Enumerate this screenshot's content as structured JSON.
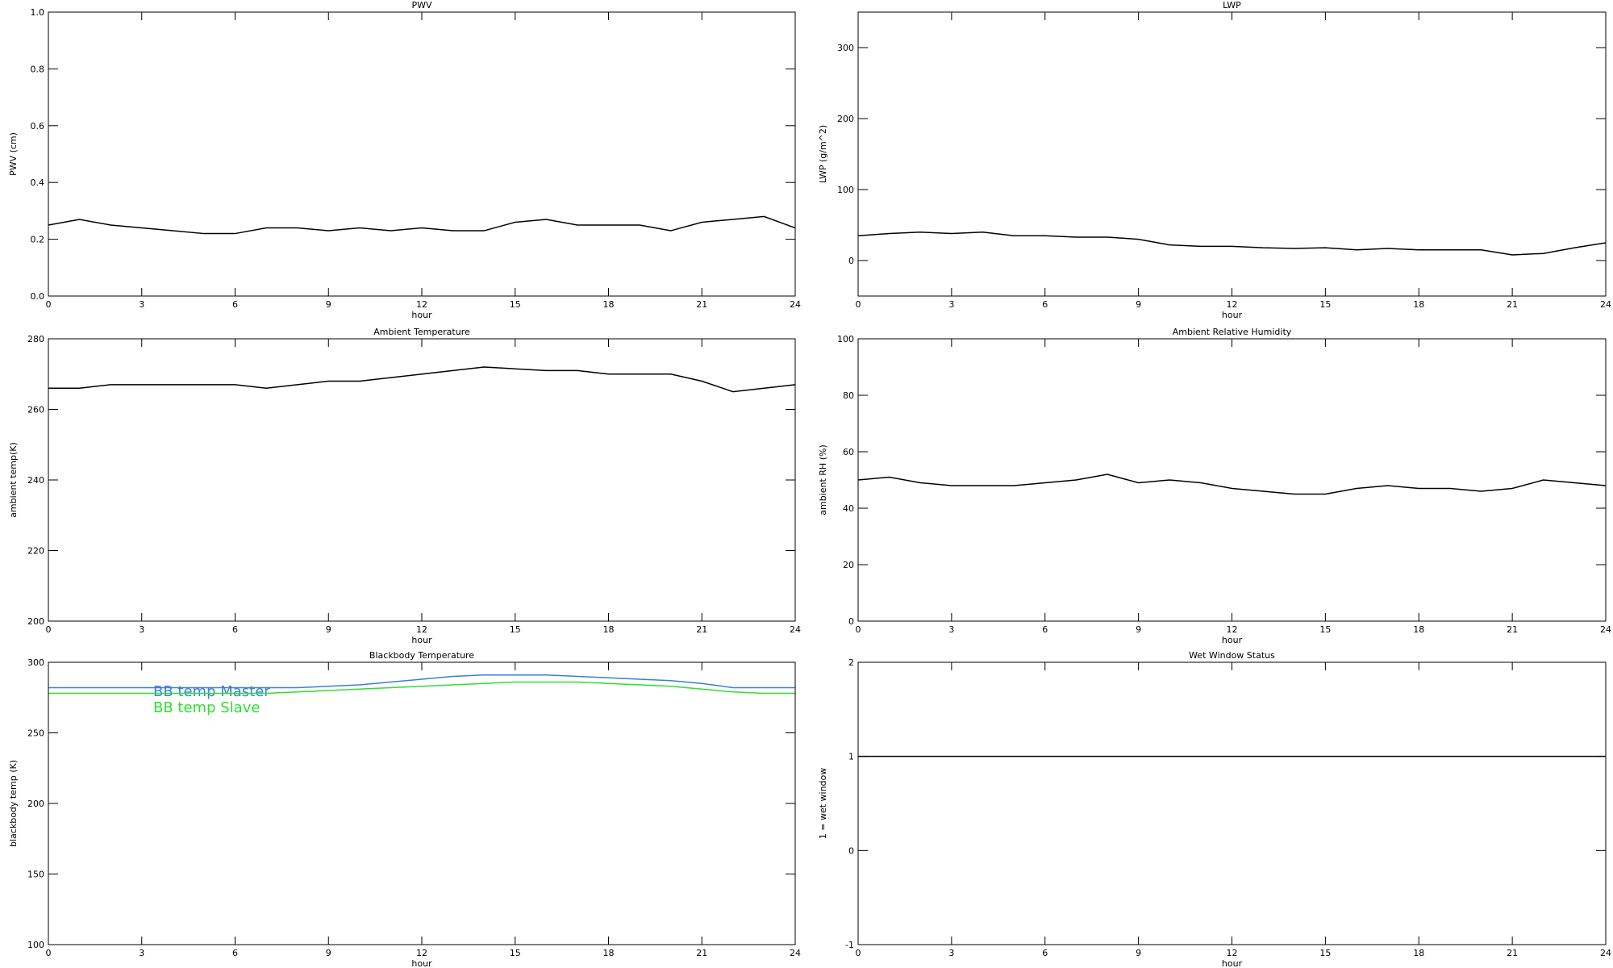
{
  "chart_data": [
    {
      "type": "line",
      "title": "PWV",
      "ylabel": "PWV (cm)",
      "xlabel": "hour",
      "x": [
        0,
        1,
        2,
        3,
        4,
        5,
        6,
        7,
        8,
        9,
        10,
        11,
        12,
        13,
        14,
        15,
        16,
        17,
        18,
        19,
        20,
        21,
        22,
        23,
        24
      ],
      "xlim": [
        0,
        24
      ],
      "xticks": [
        0,
        3,
        6,
        9,
        12,
        15,
        18,
        21,
        24
      ],
      "ylim": [
        0,
        1
      ],
      "yticks": [
        {
          "value": 0,
          "label": "0.0"
        },
        0.2,
        0.4,
        0.6,
        0.8,
        {
          "value": 1,
          "label": "1.0"
        }
      ],
      "series": [
        {
          "color": "#000000",
          "values": [
            0.25,
            0.27,
            0.25,
            0.24,
            0.23,
            0.22,
            0.22,
            0.24,
            0.24,
            0.23,
            0.24,
            0.23,
            0.24,
            0.23,
            0.23,
            0.26,
            0.27,
            0.25,
            0.25,
            0.25,
            0.23,
            0.26,
            0.27,
            0.28,
            0.24
          ]
        }
      ]
    },
    {
      "type": "line",
      "title": "LWP",
      "ylabel": "LWP (g/m^2)",
      "xlabel": "hour",
      "x": [
        0,
        1,
        2,
        3,
        4,
        5,
        6,
        7,
        8,
        9,
        10,
        11,
        12,
        13,
        14,
        15,
        16,
        17,
        18,
        19,
        20,
        21,
        22,
        23,
        24
      ],
      "xlim": [
        0,
        24
      ],
      "xticks": [
        0,
        3,
        6,
        9,
        12,
        15,
        18,
        21,
        24
      ],
      "ylim": [
        -50,
        350
      ],
      "yticks": [
        0,
        100,
        200,
        300
      ],
      "series": [
        {
          "color": "#000000",
          "values": [
            35,
            38,
            40,
            38,
            40,
            35,
            35,
            33,
            33,
            30,
            22,
            20,
            20,
            18,
            17,
            18,
            15,
            17,
            15,
            15,
            15,
            8,
            10,
            18,
            25
          ]
        }
      ]
    },
    {
      "type": "line",
      "title": "Ambient Temperature",
      "ylabel": "ambient temp(K)",
      "xlabel": "hour",
      "x": [
        0,
        1,
        2,
        3,
        4,
        5,
        6,
        7,
        8,
        9,
        10,
        11,
        12,
        13,
        14,
        15,
        16,
        17,
        18,
        19,
        20,
        21,
        22,
        23,
        24
      ],
      "xlim": [
        0,
        24
      ],
      "xticks": [
        0,
        3,
        6,
        9,
        12,
        15,
        18,
        21,
        24
      ],
      "ylim": [
        200,
        280
      ],
      "yticks": [
        200,
        220,
        240,
        260,
        280
      ],
      "series": [
        {
          "color": "#000000",
          "values": [
            266,
            266,
            267,
            267,
            267,
            267,
            267,
            266,
            267,
            268,
            268,
            269,
            270,
            271,
            272,
            271.5,
            271,
            271,
            270,
            270,
            270,
            268,
            265,
            266,
            267
          ]
        }
      ]
    },
    {
      "type": "line",
      "title": "Ambient Relative Humidity",
      "ylabel": "ambient RH (%)",
      "xlabel": "hour",
      "x": [
        0,
        1,
        2,
        3,
        4,
        5,
        6,
        7,
        8,
        9,
        10,
        11,
        12,
        13,
        14,
        15,
        16,
        17,
        18,
        19,
        20,
        21,
        22,
        23,
        24
      ],
      "xlim": [
        0,
        24
      ],
      "xticks": [
        0,
        3,
        6,
        9,
        12,
        15,
        18,
        21,
        24
      ],
      "ylim": [
        0,
        100
      ],
      "yticks": [
        0,
        20,
        40,
        60,
        80,
        100
      ],
      "series": [
        {
          "color": "#000000",
          "values": [
            50,
            51,
            49,
            48,
            48,
            48,
            49,
            50,
            52,
            49,
            50,
            49,
            47,
            46,
            45,
            45,
            47,
            48,
            47,
            47,
            46,
            47,
            50,
            49,
            48
          ]
        }
      ]
    },
    {
      "type": "line",
      "title": "Blackbody Temperature",
      "ylabel": "blackbody temp (K)",
      "xlabel": "hour",
      "legend": "upper left",
      "x": [
        0,
        1,
        2,
        3,
        4,
        5,
        6,
        7,
        8,
        9,
        10,
        11,
        12,
        13,
        14,
        15,
        16,
        17,
        18,
        19,
        20,
        21,
        22,
        23,
        24
      ],
      "xlim": [
        0,
        24
      ],
      "xticks": [
        0,
        3,
        6,
        9,
        12,
        15,
        18,
        21,
        24
      ],
      "ylim": [
        100,
        300
      ],
      "yticks": [
        100,
        150,
        200,
        250,
        300
      ],
      "series": [
        {
          "name": "BB temp Master",
          "color": "#3b7fd9",
          "values": [
            282,
            282,
            282,
            282,
            282,
            282,
            282,
            282,
            282,
            283,
            284,
            286,
            288,
            290,
            291,
            291,
            291,
            290,
            289,
            288,
            287,
            285,
            282,
            282,
            282
          ]
        },
        {
          "name": "BB temp Slave",
          "color": "#2ee02e",
          "values": [
            278,
            278,
            278,
            278,
            278,
            278,
            278,
            278,
            279,
            280,
            281,
            282,
            283,
            284,
            285,
            286,
            286,
            286,
            285,
            284,
            283,
            281,
            279,
            278,
            278
          ]
        }
      ]
    },
    {
      "type": "line",
      "title": "Wet Window Status",
      "ylabel": "1 = wet window",
      "xlabel": "hour",
      "x": [
        0,
        24
      ],
      "xlim": [
        0,
        24
      ],
      "xticks": [
        0,
        3,
        6,
        9,
        12,
        15,
        18,
        21,
        24
      ],
      "ylim": [
        -1,
        2
      ],
      "yticks": [
        -1,
        0,
        1,
        2
      ],
      "series": [
        {
          "color": "#000000",
          "values": [
            1,
            1
          ]
        }
      ]
    }
  ]
}
